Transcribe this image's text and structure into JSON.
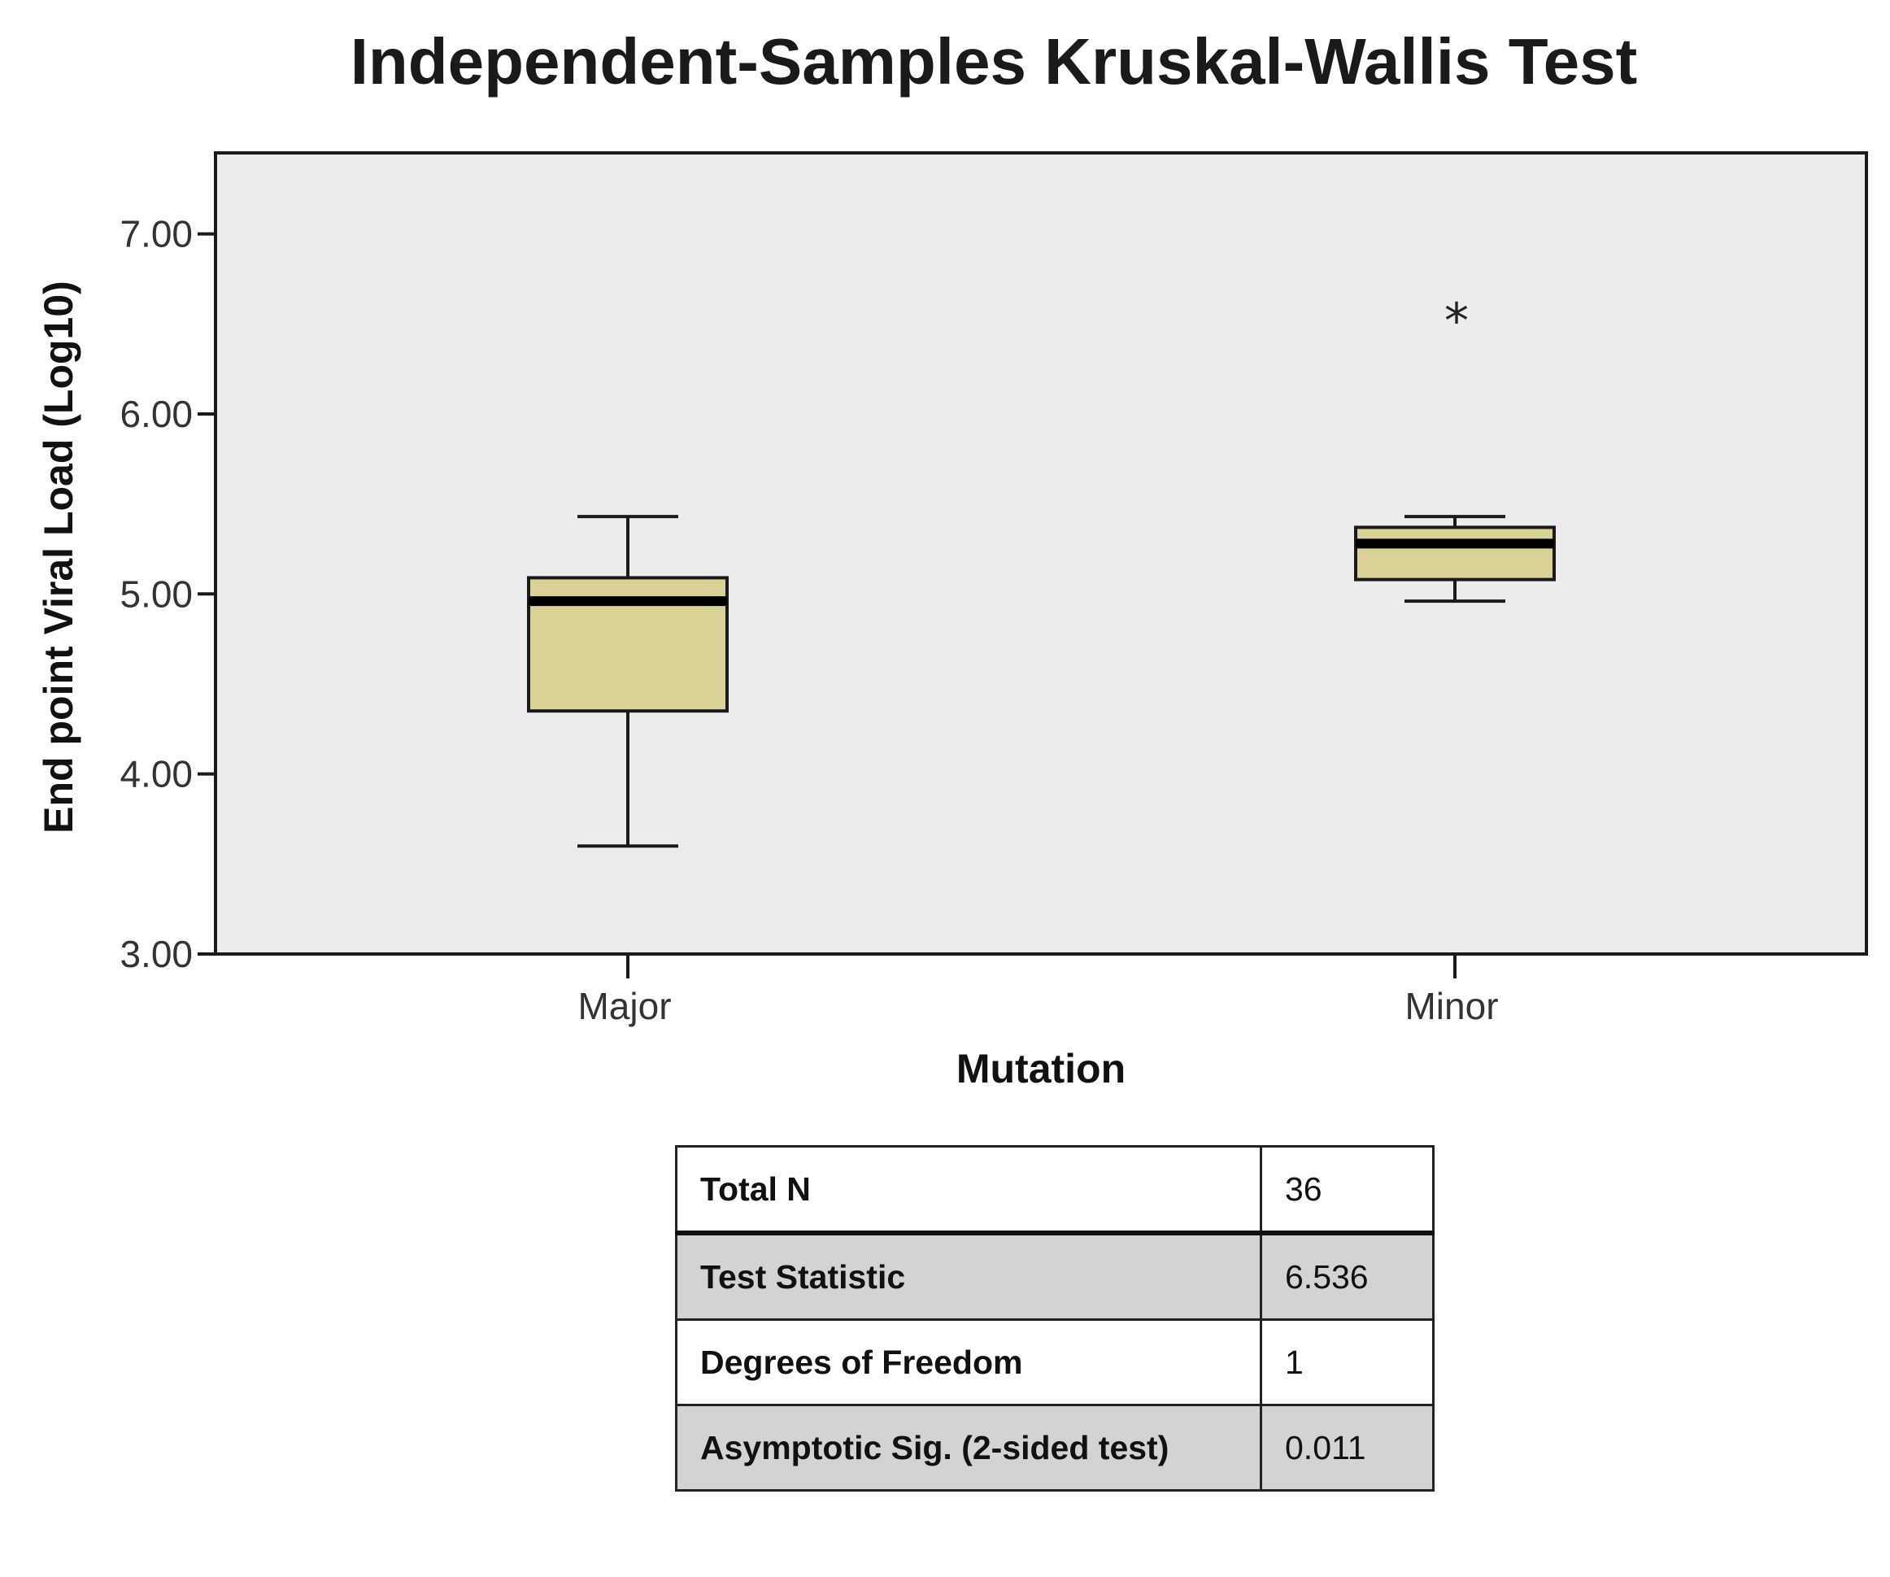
{
  "chart_data": {
    "type": "box",
    "title": "Independent-Samples Kruskal-Wallis Test",
    "xlabel": "Mutation",
    "ylabel": "End point Viral Load (Log10)",
    "ylim": [
      3.0,
      7.45
    ],
    "yticks": [
      3.0,
      4.0,
      5.0,
      6.0,
      7.0
    ],
    "ytick_labels": [
      "3.00",
      "4.00",
      "5.00",
      "6.00",
      "7.00"
    ],
    "categories": [
      "Major",
      "Minor"
    ],
    "boxes": [
      {
        "category": "Major",
        "whisker_low": 3.6,
        "q1": 4.35,
        "median": 4.96,
        "q3": 5.09,
        "whisker_high": 5.43,
        "outliers": []
      },
      {
        "category": "Minor",
        "whisker_low": 4.96,
        "q1": 5.08,
        "median": 5.28,
        "q3": 5.37,
        "whisker_high": 5.43,
        "outliers": [
          6.56
        ]
      }
    ],
    "outlier_marker": "*",
    "grid": false,
    "colors": {
      "box_fill": "#d8d296",
      "plot_background": "#ececec",
      "stroke": "#1a1a1a"
    }
  },
  "stats_table": {
    "rows": [
      {
        "label": "Total N",
        "value": "36"
      },
      {
        "label": "Test Statistic",
        "value": "6.536"
      },
      {
        "label": "Degrees of Freedom",
        "value": "1"
      },
      {
        "label": "Asymptotic Sig. (2-sided test)",
        "value": "0.011"
      }
    ]
  }
}
